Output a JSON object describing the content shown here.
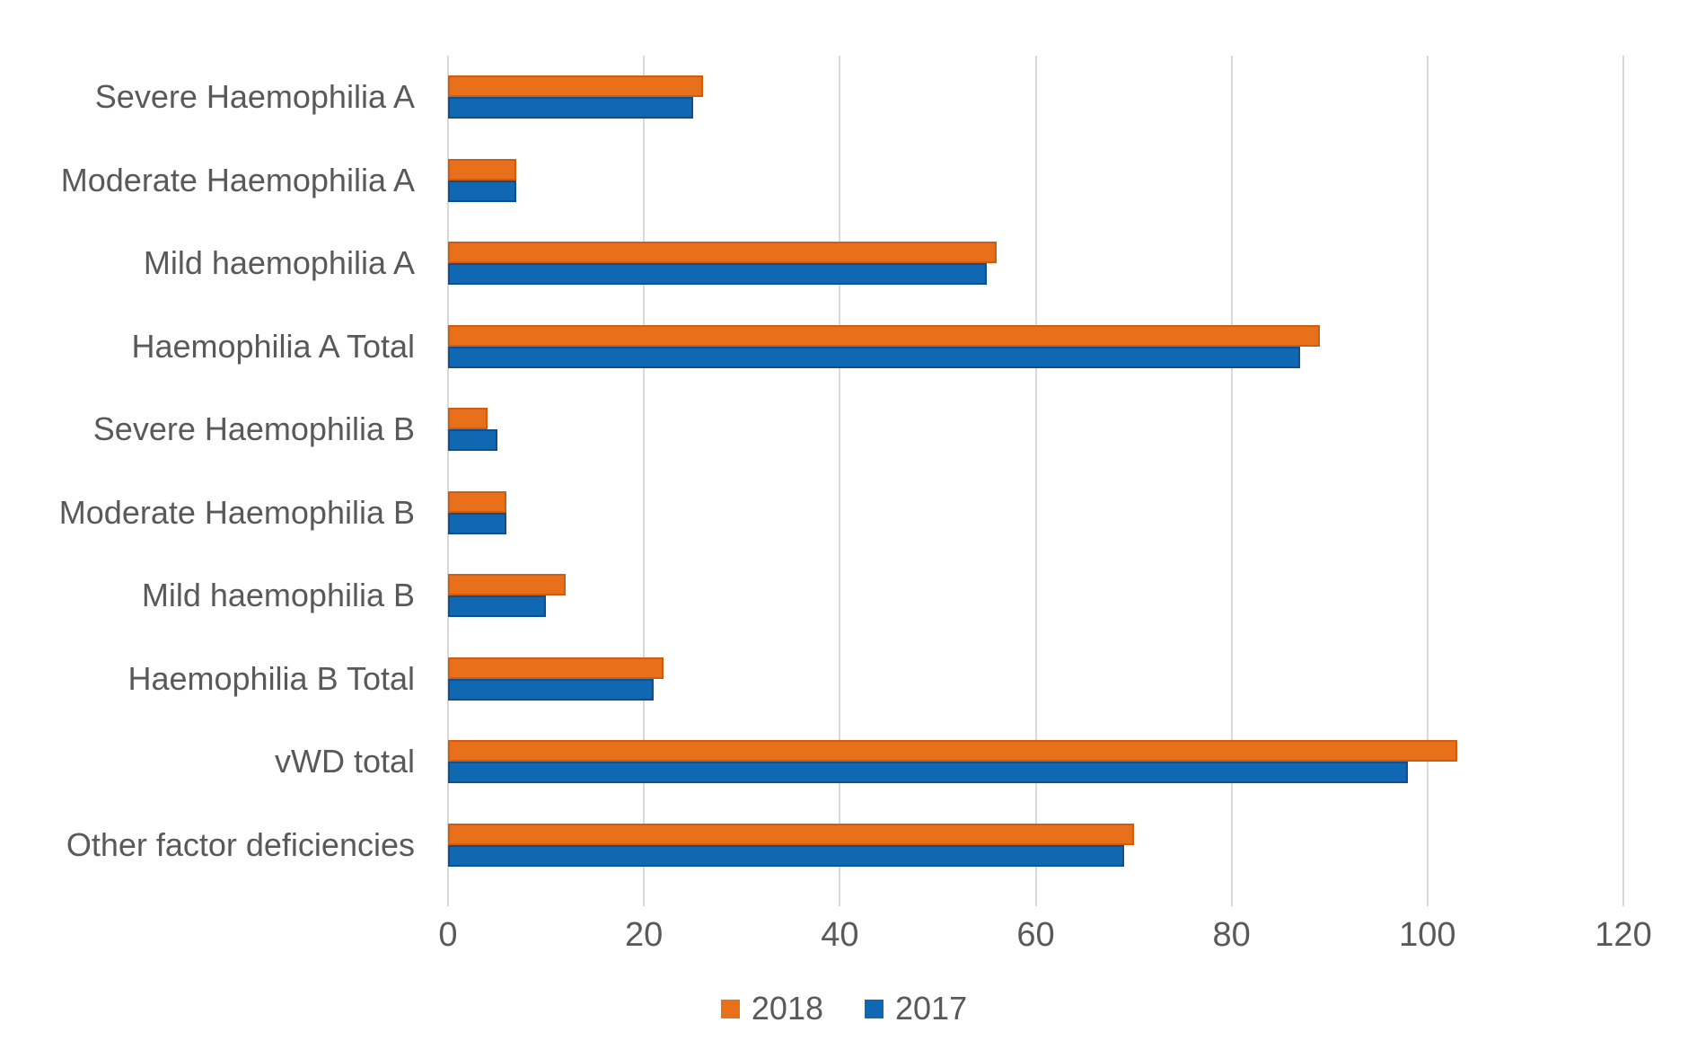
{
  "chart_data": {
    "type": "bar",
    "orientation": "horizontal",
    "title": "",
    "xlabel": "",
    "ylabel": "",
    "categories": [
      "Severe Haemophilia A",
      "Moderate Haemophilia A",
      "Mild haemophilia A",
      "Haemophilia A Total",
      "Severe Haemophilia B",
      "Moderate Haemophilia B",
      "Mild haemophilia B",
      "Haemophilia B Total",
      "vWD total",
      "Other factor deficiencies"
    ],
    "series": [
      {
        "name": "2018",
        "color": "#e8701a",
        "values": [
          26,
          7,
          56,
          89,
          4,
          6,
          12,
          22,
          103,
          70
        ]
      },
      {
        "name": "2017",
        "color": "#1168b2",
        "values": [
          25,
          7,
          55,
          87,
          5,
          6,
          10,
          21,
          98,
          69
        ]
      }
    ],
    "xlim": [
      0,
      120
    ],
    "xticks": [
      0,
      20,
      40,
      60,
      80,
      100,
      120
    ],
    "grid": "vertical",
    "gridline_color": "#d9d9d9",
    "legend_position": "bottom",
    "text_color": "#595959"
  },
  "legend": {
    "items": [
      {
        "label": "2018",
        "color": "#e8701a"
      },
      {
        "label": "2017",
        "color": "#1168b2"
      }
    ]
  }
}
